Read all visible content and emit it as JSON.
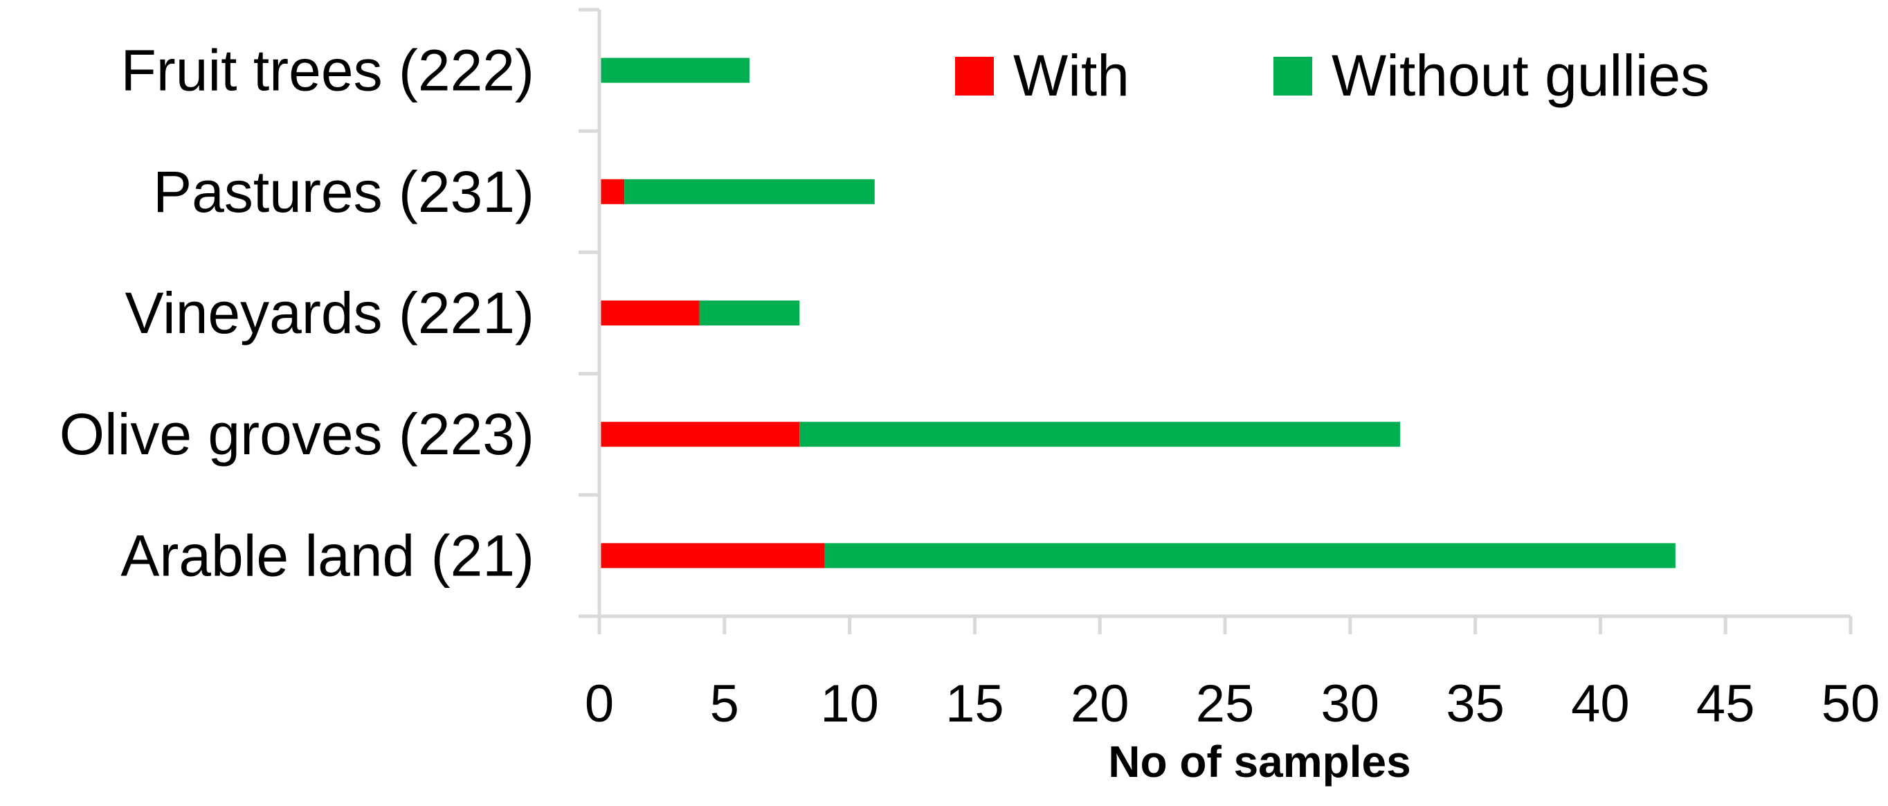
{
  "chart_data": {
    "type": "bar",
    "orientation": "horizontal",
    "stacked": true,
    "categories": [
      "Arable land (21)",
      "Olive groves (223)",
      "Vineyards (221)",
      "Pastures (231)",
      "Fruit trees (222)"
    ],
    "series": [
      {
        "name": "With",
        "color": "#ff0000",
        "values": [
          9,
          8,
          4,
          1,
          0
        ]
      },
      {
        "name": "Without gullies",
        "color": "#00b050",
        "values": [
          34,
          24,
          4,
          10,
          6
        ]
      }
    ],
    "title": "",
    "xlabel": "No of samples",
    "ylabel": "",
    "xlim": [
      0,
      50
    ],
    "xticks": [
      0,
      5,
      10,
      15,
      20,
      25,
      30,
      35,
      40,
      45,
      50
    ],
    "grid": false,
    "legend_position": "top-right"
  }
}
